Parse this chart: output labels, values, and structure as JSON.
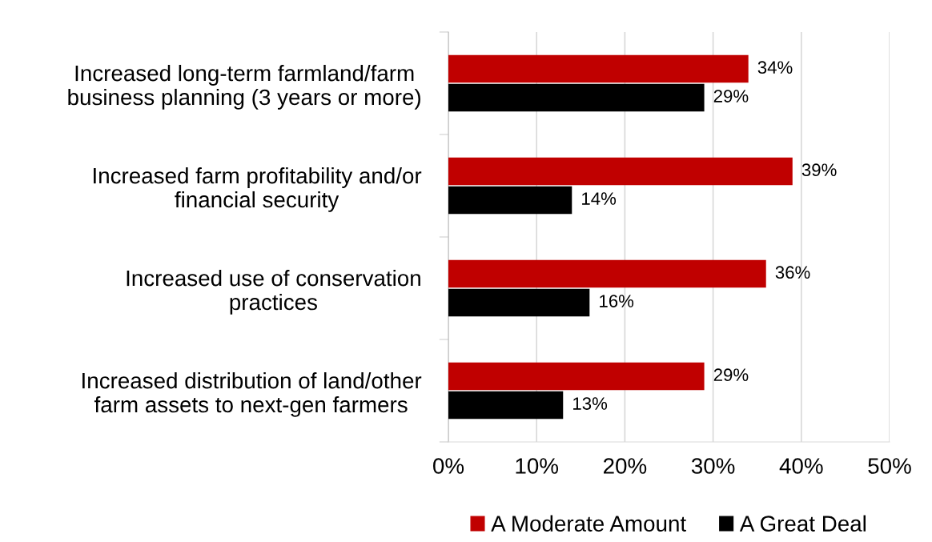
{
  "chart_data": {
    "type": "bar",
    "orientation": "horizontal",
    "categories": [
      "Increased long-term farmland/farm\nbusiness planning (3 years or more)",
      "Increased farm profitability and/or\nfinancial security",
      "Increased use of conservation\npractices",
      "Increased distribution of land/other\nfarm assets to next-gen farmers"
    ],
    "series": [
      {
        "name": "A Moderate Amount",
        "color": "#c00000",
        "values": [
          34,
          39,
          36,
          29
        ],
        "value_labels": [
          "34%",
          "39%",
          "36%",
          "29%"
        ]
      },
      {
        "name": "A Great Deal",
        "color": "#000000",
        "values": [
          29,
          14,
          16,
          13
        ],
        "value_labels": [
          "29%",
          "14%",
          "16%",
          "13%"
        ]
      }
    ],
    "xlim": [
      0,
      50
    ],
    "xticks": [
      {
        "value": 0,
        "label": "0%"
      },
      {
        "value": 10,
        "label": "10%"
      },
      {
        "value": 20,
        "label": "20%"
      },
      {
        "value": 30,
        "label": "30%"
      },
      {
        "value": 40,
        "label": "40%"
      },
      {
        "value": 50,
        "label": "50%"
      }
    ],
    "grid": "x",
    "legend": "bottom"
  }
}
